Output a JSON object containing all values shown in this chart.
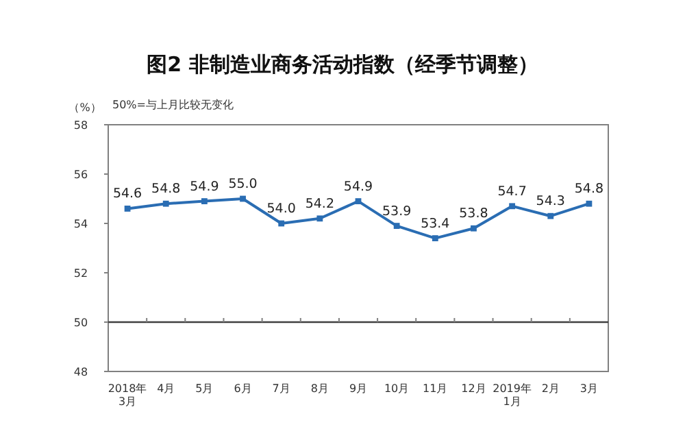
{
  "chart_data": {
    "type": "line",
    "title": "图2  非制造业商务活动指数（经季节调整）",
    "ylabel": "（%）",
    "annotations": [
      "50%=与上月比较无变化"
    ],
    "categories": [
      "2018年\n3月",
      "4月",
      "5月",
      "6月",
      "7月",
      "8月",
      "9月",
      "10月",
      "11月",
      "12月",
      "2019年\n1月",
      "2月",
      "3月"
    ],
    "series": [
      {
        "color": "#2a6db3",
        "values": [
          54.6,
          54.8,
          54.9,
          55.0,
          54.0,
          54.2,
          54.9,
          53.9,
          53.4,
          53.8,
          54.7,
          54.3,
          54.8
        ],
        "value_labels": [
          "54.6",
          "54.8",
          "54.9",
          "55.0",
          "54.0",
          "54.2",
          "54.9",
          "53.9",
          "53.4",
          "53.8",
          "54.7",
          "54.3",
          "54.8"
        ]
      }
    ],
    "ylim": [
      48,
      58
    ],
    "yticks": [
      48,
      50,
      52,
      54,
      56,
      58
    ],
    "ref_lines": [
      {
        "axis": "y",
        "value": 50,
        "color": "#404040"
      }
    ],
    "marker": "square",
    "grid": false
  }
}
